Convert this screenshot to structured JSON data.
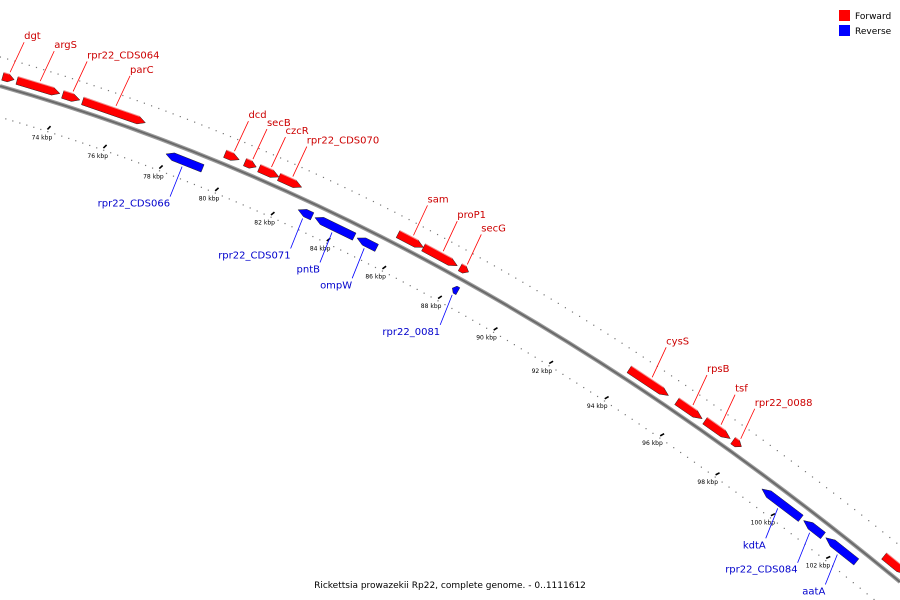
{
  "legend": {
    "forward": {
      "label": "Forward",
      "color": "#ff0000"
    },
    "reverse": {
      "label": "Reverse",
      "color": "#0000ff"
    }
  },
  "caption": "Rickettsia prowazekii Rp22, complete genome. - 0..1111612",
  "track_range_kbp": [
    72,
    104
  ],
  "ticks": [
    {
      "kbp": 74,
      "label": "74 kbp"
    },
    {
      "kbp": 76,
      "label": "76 kbp"
    },
    {
      "kbp": 78,
      "label": "78 kbp"
    },
    {
      "kbp": 80,
      "label": "80 kbp"
    },
    {
      "kbp": 82,
      "label": "82 kbp"
    },
    {
      "kbp": 84,
      "label": "84 kbp"
    },
    {
      "kbp": 86,
      "label": "86 kbp"
    },
    {
      "kbp": 88,
      "label": "88 kbp"
    },
    {
      "kbp": 90,
      "label": "90 kbp"
    },
    {
      "kbp": 92,
      "label": "92 kbp"
    },
    {
      "kbp": 94,
      "label": "94 kbp"
    },
    {
      "kbp": 96,
      "label": "96 kbp"
    },
    {
      "kbp": 98,
      "label": "98 kbp"
    },
    {
      "kbp": 100,
      "label": "100 kbp"
    },
    {
      "kbp": 102,
      "label": "102 kbp"
    }
  ],
  "genes": [
    {
      "name": "dgt",
      "strand": "forward",
      "start_kbp": 72.0,
      "end_kbp": 72.4
    },
    {
      "name": "argS",
      "strand": "forward",
      "start_kbp": 72.5,
      "end_kbp": 74.0
    },
    {
      "name": "rpr22_CDS064",
      "strand": "forward",
      "start_kbp": 74.1,
      "end_kbp": 74.7
    },
    {
      "name": "parC",
      "strand": "forward",
      "start_kbp": 74.8,
      "end_kbp": 77.0
    },
    {
      "name": "rpr22_CDS066",
      "strand": "reverse",
      "start_kbp": 78.0,
      "end_kbp": 79.3
    },
    {
      "name": "dcd",
      "strand": "forward",
      "start_kbp": 79.8,
      "end_kbp": 80.3
    },
    {
      "name": "secB",
      "strand": "forward",
      "start_kbp": 80.5,
      "end_kbp": 80.9
    },
    {
      "name": "czcR",
      "strand": "forward",
      "start_kbp": 81.0,
      "end_kbp": 81.7
    },
    {
      "name": "rpr22_CDS070",
      "strand": "forward",
      "start_kbp": 81.7,
      "end_kbp": 82.5
    },
    {
      "name": "rpr22_CDS071",
      "strand": "reverse",
      "start_kbp": 82.7,
      "end_kbp": 83.2
    },
    {
      "name": "pntB",
      "strand": "reverse",
      "start_kbp": 83.3,
      "end_kbp": 84.7
    },
    {
      "name": "ompW",
      "strand": "reverse",
      "start_kbp": 84.8,
      "end_kbp": 85.5
    },
    {
      "name": "sam",
      "strand": "forward",
      "start_kbp": 85.9,
      "end_kbp": 86.8
    },
    {
      "name": "proP1",
      "strand": "forward",
      "start_kbp": 86.8,
      "end_kbp": 88.0
    },
    {
      "name": "secG",
      "strand": "forward",
      "start_kbp": 88.1,
      "end_kbp": 88.4
    },
    {
      "name": "rpr22_0081",
      "strand": "reverse",
      "start_kbp": 88.2,
      "end_kbp": 88.4
    },
    {
      "name": "cysS",
      "strand": "forward",
      "start_kbp": 94.1,
      "end_kbp": 95.5
    },
    {
      "name": "rpsB",
      "strand": "forward",
      "start_kbp": 95.8,
      "end_kbp": 96.7
    },
    {
      "name": "tsf",
      "strand": "forward",
      "start_kbp": 96.8,
      "end_kbp": 97.7
    },
    {
      "name": "rpr22_0088",
      "strand": "forward",
      "start_kbp": 97.8,
      "end_kbp": 98.1
    },
    {
      "name": "kdtA",
      "strand": "reverse",
      "start_kbp": 99.3,
      "end_kbp": 100.7
    },
    {
      "name": "rpr22_CDS084",
      "strand": "reverse",
      "start_kbp": 100.8,
      "end_kbp": 101.5
    },
    {
      "name": "aatA",
      "strand": "reverse",
      "start_kbp": 101.6,
      "end_kbp": 102.7
    },
    {
      "name": "",
      "strand": "forward",
      "start_kbp": 103.2,
      "end_kbp": 104.0
    }
  ]
}
